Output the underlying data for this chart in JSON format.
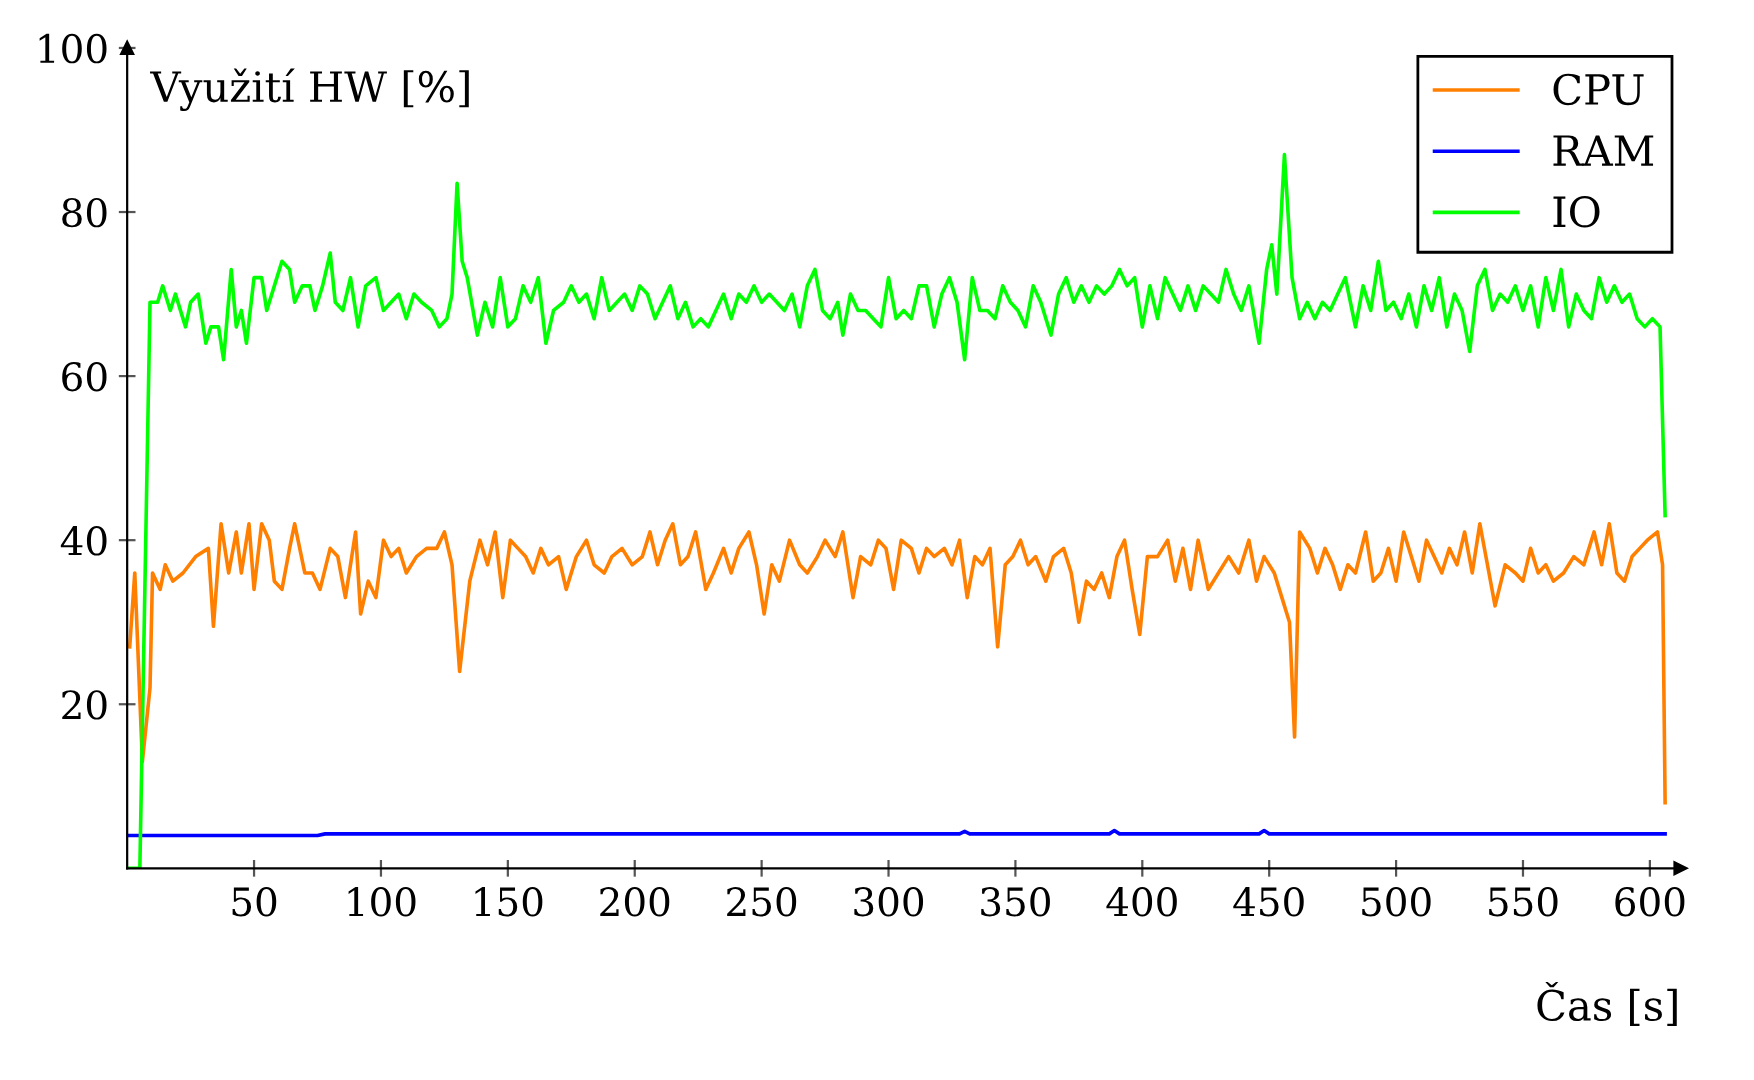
{
  "chart_data": {
    "type": "line",
    "ylabel": "Využití HW [%]",
    "xlabel": "Čas [s]",
    "xlim": [
      0,
      612
    ],
    "ylim": [
      0,
      100
    ],
    "xticks": [
      50,
      100,
      150,
      200,
      250,
      300,
      350,
      400,
      450,
      500,
      550,
      600
    ],
    "yticks": [
      20,
      40,
      60,
      80,
      100
    ],
    "grid": false,
    "legend": "top right",
    "marker": "none",
    "line_style": "solid",
    "series": [
      {
        "name": "CPU",
        "color": "#ff7f00",
        "x": [
          1,
          3,
          6,
          9,
          10,
          13,
          15,
          18,
          22,
          27,
          32,
          34,
          37,
          40,
          43,
          45,
          48,
          50,
          53,
          56,
          58,
          61,
          64,
          66,
          70,
          73,
          76,
          80,
          83,
          86,
          90,
          92,
          95,
          98,
          101,
          104,
          107,
          110,
          114,
          118,
          122,
          125,
          128,
          131,
          135,
          139,
          142,
          145,
          148,
          151,
          154,
          157,
          160,
          163,
          166,
          170,
          173,
          177,
          181,
          184,
          188,
          191,
          195,
          199,
          203,
          206,
          209,
          212,
          215,
          218,
          221,
          224,
          228,
          231,
          235,
          238,
          241,
          245,
          248,
          251,
          254,
          257,
          261,
          265,
          268,
          272,
          275,
          279,
          282,
          286,
          289,
          293,
          296,
          299,
          302,
          305,
          309,
          312,
          315,
          318,
          322,
          325,
          328,
          331,
          334,
          337,
          340,
          343,
          346,
          349,
          352,
          355,
          358,
          362,
          365,
          369,
          372,
          375,
          378,
          381,
          384,
          387,
          390,
          393,
          396,
          399,
          402,
          406,
          410,
          413,
          416,
          419,
          422,
          426,
          430,
          434,
          438,
          442,
          445,
          448,
          452,
          455,
          458,
          460,
          462,
          466,
          469,
          472,
          475,
          478,
          481,
          484,
          488,
          491,
          494,
          497,
          500,
          503,
          506,
          509,
          512,
          515,
          518,
          521,
          524,
          527,
          530,
          533,
          536,
          539,
          543,
          547,
          550,
          553,
          556,
          559,
          562,
          566,
          570,
          574,
          578,
          581,
          584,
          587,
          590,
          593,
          596,
          599,
          603,
          605,
          606
        ],
        "values": [
          27,
          36,
          13,
          22,
          36,
          34,
          37,
          35,
          36,
          38,
          39,
          29.5,
          42,
          36,
          41,
          36,
          42,
          34,
          42,
          40,
          35,
          34,
          39,
          42,
          36,
          36,
          34,
          39,
          38,
          33,
          41,
          31,
          35,
          33,
          40,
          38,
          39,
          36,
          38,
          39,
          39,
          41,
          37,
          24,
          35,
          40,
          37,
          41,
          33,
          40,
          39,
          38,
          36,
          39,
          37,
          38,
          34,
          38,
          40,
          37,
          36,
          38,
          39,
          37,
          38,
          41,
          37,
          40,
          42,
          37,
          38,
          41,
          34,
          36,
          39,
          36,
          39,
          41,
          37,
          31,
          37,
          35,
          40,
          37,
          36,
          38,
          40,
          38,
          41,
          33,
          38,
          37,
          40,
          39,
          34,
          40,
          39,
          36,
          39,
          38,
          39,
          37,
          40,
          33,
          38,
          37,
          39,
          27,
          37,
          38,
          40,
          37,
          38,
          35,
          38,
          39,
          36,
          30,
          35,
          34,
          36,
          33,
          38,
          40,
          34,
          28.5,
          38,
          38,
          40,
          35,
          39,
          34,
          40,
          34,
          36,
          38,
          36,
          40,
          35,
          38,
          36,
          33,
          30,
          16,
          41,
          39,
          36,
          39,
          37,
          34,
          37,
          36,
          41,
          35,
          36,
          39,
          35,
          41,
          38,
          35,
          40,
          38,
          36,
          39,
          37,
          41,
          36,
          42,
          37,
          32,
          37,
          36,
          35,
          39,
          36,
          37,
          35,
          36,
          38,
          37,
          41,
          37,
          42,
          36,
          35,
          38,
          39,
          40,
          41,
          37,
          8
        ]
      },
      {
        "name": "RAM",
        "color": "#0000ff",
        "x": [
          1,
          75,
          78,
          328,
          330,
          332,
          387,
          389,
          391,
          446,
          448,
          450,
          606
        ],
        "values": [
          4.0,
          4.0,
          4.2,
          4.2,
          4.5,
          4.2,
          4.2,
          4.6,
          4.2,
          4.2,
          4.6,
          4.2,
          4.2
        ]
      },
      {
        "name": "IO",
        "color": "#00ff00",
        "x": [
          1,
          3,
          5,
          9,
          12,
          14,
          17,
          19,
          23,
          25,
          28,
          31,
          33,
          36,
          38,
          41,
          43,
          45,
          47,
          50,
          53,
          55,
          58,
          61,
          64,
          66,
          69,
          72,
          74,
          77,
          80,
          82,
          85,
          88,
          91,
          94,
          98,
          101,
          104,
          107,
          110,
          113,
          116,
          120,
          123,
          126,
          128,
          130,
          132,
          134,
          138,
          141,
          144,
          147,
          150,
          153,
          156,
          159,
          162,
          165,
          168,
          172,
          175,
          178,
          181,
          184,
          187,
          190,
          193,
          196,
          199,
          202,
          205,
          208,
          211,
          214,
          217,
          220,
          223,
          226,
          229,
          232,
          235,
          238,
          241,
          244,
          247,
          250,
          253,
          256,
          259,
          262,
          265,
          268,
          271,
          274,
          277,
          280,
          282,
          285,
          288,
          291,
          294,
          297,
          300,
          303,
          306,
          309,
          312,
          315,
          318,
          321,
          324,
          327,
          330,
          333,
          336,
          339,
          342,
          345,
          348,
          351,
          354,
          357,
          360,
          364,
          367,
          370,
          373,
          376,
          379,
          382,
          385,
          388,
          391,
          394,
          397,
          400,
          403,
          406,
          409,
          412,
          415,
          418,
          421,
          424,
          427,
          430,
          433,
          436,
          439,
          442,
          446,
          449,
          451,
          453,
          456,
          459,
          462,
          465,
          468,
          471,
          474,
          477,
          480,
          484,
          487,
          490,
          493,
          496,
          499,
          502,
          505,
          508,
          511,
          514,
          517,
          520,
          523,
          526,
          529,
          532,
          535,
          538,
          541,
          544,
          547,
          550,
          553,
          556,
          559,
          562,
          565,
          568,
          571,
          574,
          577,
          580,
          583,
          586,
          589,
          592,
          595,
          598,
          601,
          604,
          606
        ],
        "values": [
          0,
          0,
          0,
          69,
          69,
          71,
          68,
          70,
          66,
          69,
          70,
          64,
          66,
          66,
          62,
          73,
          66,
          68,
          64,
          72,
          72,
          68,
          71,
          74,
          73,
          69,
          71,
          71,
          68,
          71,
          75,
          69,
          68,
          72,
          66,
          71,
          72,
          68,
          69,
          70,
          67,
          70,
          69,
          68,
          66,
          67,
          70,
          83.5,
          74,
          72,
          65,
          69,
          66,
          72,
          66,
          67,
          71,
          69,
          72,
          64,
          68,
          69,
          71,
          69,
          70,
          67,
          72,
          68,
          69,
          70,
          68,
          71,
          70,
          67,
          69,
          71,
          67,
          69,
          66,
          67,
          66,
          68,
          70,
          67,
          70,
          69,
          71,
          69,
          70,
          69,
          68,
          70,
          66,
          71,
          73,
          68,
          67,
          69,
          65,
          70,
          68,
          68,
          67,
          66,
          72,
          67,
          68,
          67,
          71,
          71,
          66,
          70,
          72,
          69,
          62,
          72,
          68,
          68,
          67,
          71,
          69,
          68,
          66,
          71,
          69,
          65,
          70,
          72,
          69,
          71,
          69,
          71,
          70,
          71,
          73,
          71,
          72,
          66,
          71,
          67,
          72,
          70,
          68,
          71,
          68,
          71,
          70,
          69,
          73,
          70,
          68,
          71,
          64,
          73,
          76,
          70,
          87,
          72,
          67,
          69,
          67,
          69,
          68,
          70,
          72,
          66,
          71,
          68,
          74,
          68,
          69,
          67,
          70,
          66,
          71,
          68,
          72,
          66,
          70,
          68,
          63,
          71,
          73,
          68,
          70,
          69,
          71,
          68,
          71,
          66,
          72,
          68,
          73,
          66,
          70,
          68,
          67,
          72,
          69,
          71,
          69,
          70,
          67,
          66,
          67,
          66,
          43
        ]
      }
    ]
  }
}
